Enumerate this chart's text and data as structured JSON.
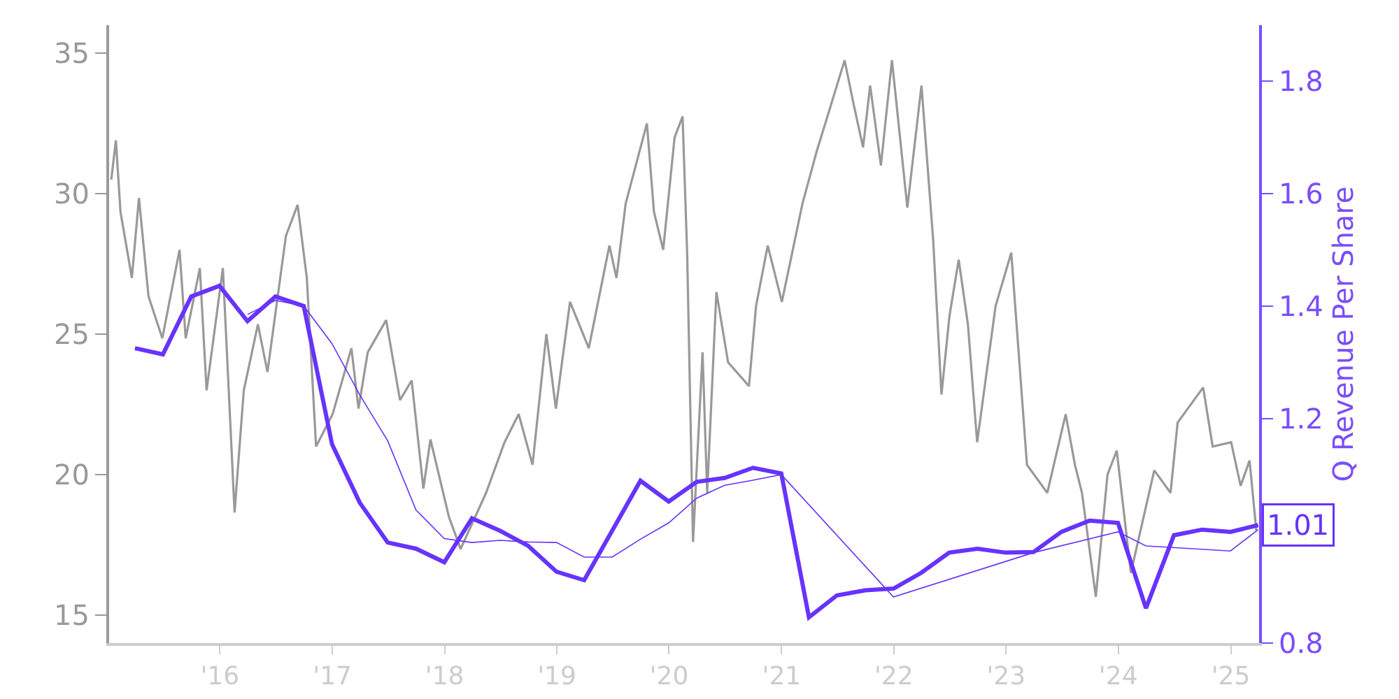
{
  "chart_data": {
    "type": "line",
    "y2label": "Q Revenue Per Share",
    "xlim": [
      "2015-01-06",
      "2025-04-03"
    ],
    "xticks": [
      {
        "value": "2016-01-01",
        "label": "'16"
      },
      {
        "value": "2017-01-01",
        "label": "'17"
      },
      {
        "value": "2018-01-01",
        "label": "'18"
      },
      {
        "value": "2019-01-01",
        "label": "'19"
      },
      {
        "value": "2020-01-01",
        "label": "'20"
      },
      {
        "value": "2021-01-01",
        "label": "'21"
      },
      {
        "value": "2022-01-01",
        "label": "'22"
      },
      {
        "value": "2023-01-01",
        "label": "'23"
      },
      {
        "value": "2024-01-01",
        "label": "'24"
      },
      {
        "value": "2025-01-01",
        "label": "'25"
      }
    ],
    "ylim": [
      14,
      36
    ],
    "yticks": [
      15,
      20,
      25,
      30,
      35
    ],
    "y2lim": [
      0.8,
      1.9
    ],
    "y2ticks": [
      0.8,
      1.2,
      1.4,
      1.6,
      1.8
    ],
    "grid": false,
    "series": [
      {
        "color": "#999999",
        "x": [
          "2015-01-13",
          "2015-01-28",
          "2015-02-12",
          "2015-03-21",
          "2015-04-13",
          "2015-05-14",
          "2015-06-28",
          "2015-08-23",
          "2015-09-12",
          "2015-10-28",
          "2015-11-19",
          "2016-01-11",
          "2016-02-18",
          "2016-03-19",
          "2016-05-04",
          "2016-06-04",
          "2016-08-03",
          "2016-09-10",
          "2016-10-10",
          "2016-11-09",
          "2017-01-02",
          "2017-03-04",
          "2017-03-27",
          "2017-04-26",
          "2017-06-25",
          "2017-08-09",
          "2017-09-16",
          "2017-10-24",
          "2017-11-16",
          "2018-01-15",
          "2018-02-22",
          "2018-05-16",
          "2018-07-15",
          "2018-08-30",
          "2018-10-14",
          "2018-11-28",
          "2018-12-29",
          "2019-02-13",
          "2019-04-15",
          "2019-06-21",
          "2019-07-14",
          "2019-08-13",
          "2019-10-21",
          "2019-11-13",
          "2019-12-13",
          "2020-01-19",
          "2020-02-14",
          "2020-02-29",
          "2020-03-19",
          "2020-04-19",
          "2020-05-04",
          "2020-06-03",
          "2020-07-11",
          "2020-09-17",
          "2020-10-10",
          "2020-11-17",
          "2021-01-02",
          "2021-03-10",
          "2021-04-25",
          "2021-06-02",
          "2021-07-25",
          "2021-08-24",
          "2021-09-23",
          "2021-10-16",
          "2021-11-20",
          "2021-12-26",
          "2022-02-14",
          "2022-04-01",
          "2022-05-09",
          "2022-06-05",
          "2022-07-01",
          "2022-07-31",
          "2022-08-30",
          "2022-09-29",
          "2022-11-28",
          "2023-01-18",
          "2023-03-10",
          "2023-05-15",
          "2023-07-14",
          "2023-08-13",
          "2023-09-05",
          "2023-10-20",
          "2023-11-27",
          "2023-12-27",
          "2024-02-11",
          "2024-04-27",
          "2024-06-19",
          "2024-07-12",
          "2024-10-03",
          "2024-11-03",
          "2025-01-02",
          "2025-02-02",
          "2025-03-03",
          "2025-03-25"
        ],
        "values": [
          30.5,
          31.9,
          29.35,
          27.0,
          29.85,
          26.35,
          24.85,
          28.0,
          24.85,
          27.35,
          23.0,
          27.35,
          18.65,
          23.0,
          25.35,
          23.65,
          28.5,
          29.6,
          27.0,
          21.0,
          22.15,
          24.5,
          22.35,
          24.35,
          25.5,
          22.65,
          23.35,
          19.5,
          21.25,
          18.5,
          17.35,
          19.35,
          21.15,
          22.15,
          20.35,
          25.0,
          22.35,
          26.15,
          24.5,
          28.15,
          27.0,
          29.65,
          32.5,
          29.35,
          28.0,
          32.0,
          32.75,
          27.85,
          17.6,
          24.35,
          19.35,
          26.5,
          24.0,
          23.15,
          26.0,
          28.15,
          26.15,
          29.65,
          31.5,
          32.85,
          34.75,
          33.15,
          31.65,
          33.85,
          31.0,
          34.75,
          29.5,
          33.85,
          28.35,
          22.85,
          25.65,
          27.65,
          25.35,
          21.15,
          26.0,
          27.9,
          20.35,
          19.35,
          22.15,
          20.35,
          19.35,
          15.65,
          20.0,
          20.85,
          16.5,
          20.15,
          19.35,
          21.85,
          23.1,
          21.0,
          21.15,
          19.6,
          20.5,
          18.0
        ]
      },
      {
        "color": "#6633ff",
        "axis": "y2",
        "x": [
          "2015-03-31",
          "2015-06-30",
          "2015-09-30",
          "2015-12-31",
          "2016-03-31",
          "2016-06-30",
          "2016-09-30",
          "2016-12-31",
          "2017-03-31",
          "2017-06-30",
          "2017-09-30",
          "2017-12-31",
          "2018-03-31",
          "2018-06-30",
          "2018-09-30",
          "2018-12-31",
          "2019-03-31",
          "2019-09-30",
          "2019-12-31",
          "2020-03-31",
          "2020-06-30",
          "2020-09-30",
          "2020-12-31",
          "2021-03-31",
          "2021-06-30",
          "2021-09-30",
          "2021-12-31",
          "2022-03-31",
          "2022-06-30",
          "2022-09-30",
          "2022-12-31",
          "2023-03-31",
          "2023-06-30",
          "2023-09-30",
          "2023-12-31",
          "2024-03-31",
          "2024-06-30",
          "2024-09-30",
          "2024-12-31",
          "2025-03-31"
        ],
        "values": [
          1.325,
          1.314,
          1.417,
          1.436,
          1.373,
          1.417,
          1.4,
          1.154,
          1.05,
          0.979,
          0.968,
          0.944,
          1.022,
          1.0,
          0.973,
          0.927,
          0.912,
          1.089,
          1.052,
          1.087,
          1.094,
          1.112,
          1.102,
          0.846,
          0.885,
          0.894,
          0.897,
          0.925,
          0.961,
          0.968,
          0.961,
          0.962,
          0.998,
          1.018,
          1.014,
          0.862,
          0.992,
          1.002,
          0.998,
          1.01
        ],
        "value_labels": [
          null,
          null,
          null,
          null,
          null,
          null,
          null,
          null,
          null,
          null,
          null,
          null,
          null,
          null,
          null,
          null,
          null,
          null,
          null,
          null,
          null,
          null,
          null,
          null,
          null,
          null,
          null,
          null,
          null,
          null,
          null,
          null,
          null,
          null,
          null,
          null,
          null,
          null,
          null,
          "1.01"
        ]
      },
      {
        "color": "#6633ff",
        "axis": "y2",
        "x": [
          "2016-03-31",
          "2016-06-30",
          "2016-09-30",
          "2016-12-31",
          "2017-03-31",
          "2017-06-30",
          "2017-09-30",
          "2017-12-31",
          "2018-03-31",
          "2018-06-30",
          "2018-09-30",
          "2018-12-31",
          "2019-03-31",
          "2019-06-30",
          "2019-09-30",
          "2019-12-31",
          "2020-03-31",
          "2020-06-30",
          "2020-09-30",
          "2020-12-31",
          "2021-12-31",
          "2023-03-31",
          "2023-12-31",
          "2024-03-31",
          "2024-12-31",
          "2025-03-31"
        ],
        "values": [
          1.385,
          1.41,
          1.4,
          1.333,
          1.242,
          1.16,
          1.037,
          0.986,
          0.979,
          0.983,
          0.98,
          0.979,
          0.953,
          0.953,
          0.985,
          1.014,
          1.058,
          1.081,
          1.09,
          1.1,
          0.882,
          0.961,
          0.998,
          0.973,
          0.964,
          1.002
        ]
      }
    ]
  }
}
